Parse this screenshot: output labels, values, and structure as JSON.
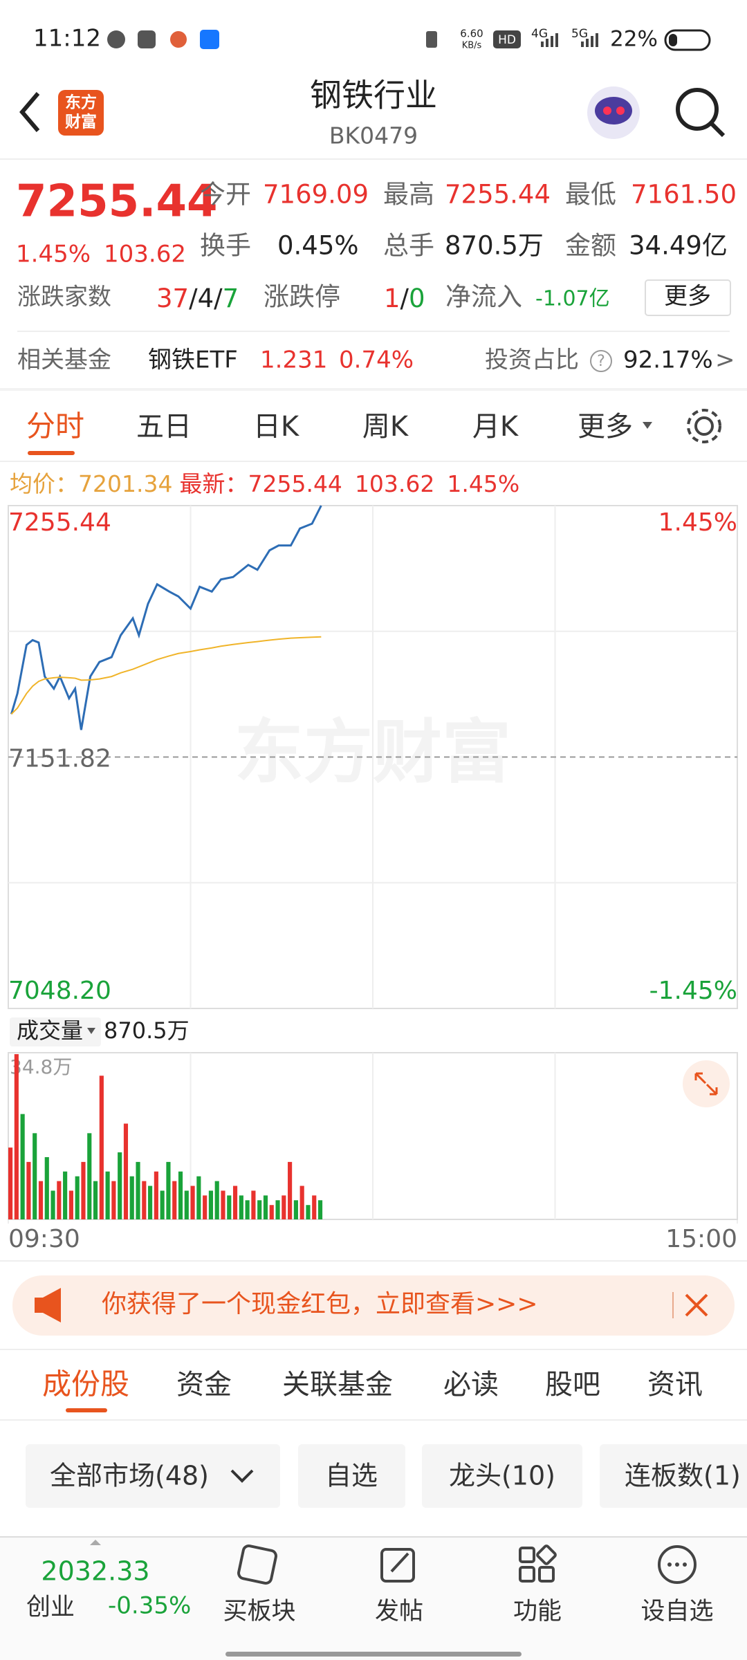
{
  "status_bar": {
    "time": "11:12",
    "speed": "6.60",
    "speed_unit": "KB/s",
    "hd": "HD",
    "net1": "4G",
    "net2": "5G",
    "battery": "22%"
  },
  "header": {
    "logo": [
      "东方",
      "财富"
    ],
    "title": "钢铁行业",
    "code": "BK0479"
  },
  "quote": {
    "price": "7255.44",
    "change_pct": "1.45%",
    "change": "103.62",
    "fields": [
      {
        "label": "今开",
        "value": "7169.09"
      },
      {
        "label": "最高",
        "value": "7255.44"
      },
      {
        "label": "最低",
        "value": "7161.50"
      },
      {
        "label": "换手",
        "value": "0.45%"
      },
      {
        "label": "总手",
        "value": "870.5万"
      },
      {
        "label": "金额",
        "value": "34.49亿"
      }
    ],
    "counts_label": "涨跌家数",
    "counts": [
      "37",
      "/",
      "4",
      "/",
      "7"
    ],
    "limit_label": "涨跌停",
    "limit": [
      "1",
      "/",
      "0"
    ],
    "inflow_label": "净流入",
    "inflow": "-1.07亿",
    "more": "更多"
  },
  "fund": {
    "label": "相关基金",
    "name": "钢铁ETF",
    "price": "1.231",
    "pct": "0.74%",
    "ratio_label": "投资占比",
    "help": "?",
    "ratio": "92.17%",
    "arrow": ">"
  },
  "period_tabs": [
    "分时",
    "五日",
    "日K",
    "周K",
    "月K",
    "更多"
  ],
  "summary": {
    "avg_label": "均价：",
    "avg": "7201.34",
    "last_label": "最新：",
    "last": "7255.44",
    "change": "103.62",
    "pct": "1.45%"
  },
  "chart_data": [
    {
      "type": "line",
      "watermark": "东方财富",
      "grid": true,
      "x": [
        1,
        3,
        6,
        8,
        10,
        12,
        15,
        17,
        20,
        22,
        24,
        27,
        30,
        34,
        37,
        41,
        43,
        46,
        49,
        53,
        56,
        60,
        63,
        67,
        70,
        74,
        79,
        82,
        86,
        89,
        93,
        96,
        100,
        103
      ],
      "series": [
        {
          "color": "#2d6db5",
          "values": [
            7169.5,
            7178,
            7198,
            7200,
            7199,
            7185,
            7180,
            7185,
            7176,
            7180,
            7163,
            7185,
            7191,
            7193,
            7202,
            7209,
            7202,
            7215,
            7223,
            7220,
            7218,
            7213,
            7222,
            7220,
            7225,
            7226,
            7231,
            7229,
            7237,
            7239,
            7239,
            7246,
            7248,
            7255.44
          ]
        },
        {
          "color": "#f0b429",
          "values": [
            7169.5,
            7172,
            7178,
            7181,
            7183,
            7184,
            7184.5,
            7184.7,
            7184.5,
            7184.3,
            7183.5,
            7183.6,
            7184,
            7185,
            7186.5,
            7188,
            7189,
            7190.5,
            7192,
            7193.5,
            7194.5,
            7195.3,
            7196,
            7196.8,
            7197.5,
            7198.2,
            7199,
            7199.4,
            7200,
            7200.4,
            7200.8,
            7201,
            7201.2,
            7201.34
          ]
        }
      ],
      "xlim": [
        0,
        240
      ],
      "xticks": [
        {
          "value": 0,
          "label": "09:30"
        },
        {
          "value": 240,
          "label": "15:00"
        }
      ],
      "ylim": [
        7048.2,
        7255.44
      ],
      "yticks": [
        7255.44,
        7151.82,
        {
          "value": 7048.2,
          "label": "7048.20"
        }
      ],
      "pct_labels": [
        "1.45%",
        "-1.45%"
      ]
    },
    {
      "type": "bar",
      "label": "成交量",
      "total": "870.5万",
      "grid": true,
      "x": [
        0,
        2,
        4,
        6,
        8,
        10,
        12,
        14,
        16,
        18,
        20,
        22,
        24,
        26,
        28,
        30,
        32,
        34,
        36,
        38,
        40,
        42,
        44,
        46,
        48,
        50,
        52,
        54,
        56,
        58,
        60,
        62,
        64,
        66,
        68,
        70,
        72,
        74,
        76,
        78,
        80,
        82,
        84,
        86,
        88,
        90,
        92,
        94,
        96,
        98,
        100,
        102
      ],
      "values": [
        15,
        34.5,
        22,
        12,
        18,
        8,
        13,
        6,
        8,
        10,
        6,
        9,
        12,
        18,
        8,
        30,
        10,
        8,
        14,
        20,
        9,
        12,
        8,
        7,
        10,
        6,
        12,
        8,
        10,
        6,
        7,
        9,
        5,
        6,
        8,
        6,
        5,
        7,
        5,
        4,
        6,
        4,
        5,
        3,
        4,
        5,
        12,
        4,
        7,
        3,
        5,
        4
      ],
      "colors": [
        "#e8322e",
        "#e8322e",
        "#1aa33a",
        "#e8322e",
        "#1aa33a",
        "#e8322e",
        "#1aa33a",
        "#1aa33a",
        "#e8322e",
        "#1aa33a",
        "#e8322e",
        "#1aa33a",
        "#e8322e",
        "#1aa33a",
        "#1aa33a",
        "#e8322e",
        "#1aa33a",
        "#e8322e",
        "#1aa33a",
        "#e8322e",
        "#1aa33a",
        "#1aa33a",
        "#e8322e",
        "#1aa33a",
        "#e8322e",
        "#1aa33a",
        "#1aa33a",
        "#e8322e",
        "#1aa33a",
        "#1aa33a",
        "#e8322e",
        "#1aa33a",
        "#e8322e",
        "#1aa33a",
        "#1aa33a",
        "#e8322e",
        "#1aa33a",
        "#e8322e",
        "#1aa33a",
        "#1aa33a",
        "#e8322e",
        "#1aa33a",
        "#1aa33a",
        "#e8322e",
        "#1aa33a",
        "#e8322e",
        "#e8322e",
        "#1aa33a",
        "#e8322e",
        "#1aa33a",
        "#e8322e",
        "#1aa33a"
      ],
      "xlim": [
        0,
        240
      ],
      "ylim": [
        0,
        34.8
      ],
      "yticks": [
        {
          "value": 34.8,
          "label": "34.8万"
        }
      ]
    }
  ],
  "banner": {
    "text": "你获得了一个现金红包，立即查看>>>"
  },
  "content_tabs": [
    "成份股",
    "资金",
    "关联基金",
    "必读",
    "股吧",
    "资讯"
  ],
  "filters": [
    "全部市场(48)",
    "自选",
    "龙头(10)",
    "连板数(1)"
  ],
  "bottom_nav": {
    "index_value": "2032.33",
    "index_name": "创业",
    "index_pct": "-0.35%",
    "items": [
      "买板块",
      "发帖",
      "功能",
      "设自选"
    ]
  }
}
